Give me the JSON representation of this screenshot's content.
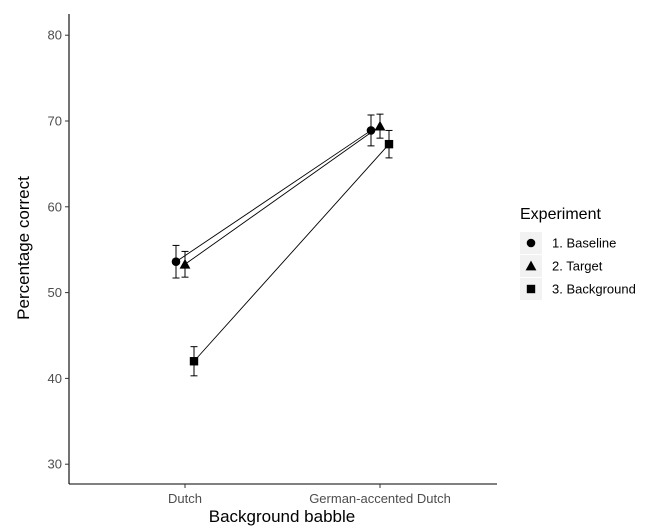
{
  "chart_data": {
    "type": "line",
    "title": "",
    "xlabel": "Background babble",
    "ylabel": "Percentage correct",
    "categories": [
      "Dutch",
      "German-accented Dutch"
    ],
    "ylim": [
      28,
      85
    ],
    "yticks": [
      30,
      40,
      50,
      60,
      70,
      80
    ],
    "grid": false,
    "legend": {
      "title": "Experiment",
      "position": "right"
    },
    "series": [
      {
        "name": "1. Baseline",
        "marker": "circle",
        "values": [
          53.6,
          68.9
        ],
        "error": [
          1.9,
          1.8
        ]
      },
      {
        "name": "2. Target",
        "marker": "triangle",
        "values": [
          53.3,
          69.4
        ],
        "error": [
          1.5,
          1.4
        ]
      },
      {
        "name": "3. Background",
        "marker": "square",
        "values": [
          42.0,
          67.3
        ],
        "error": [
          1.7,
          1.6
        ]
      }
    ],
    "colors": {
      "line": "#000000",
      "axis": "#000000",
      "tick_text": "#4d4d4d",
      "legend_key_bg": "#f2f2f2"
    }
  }
}
